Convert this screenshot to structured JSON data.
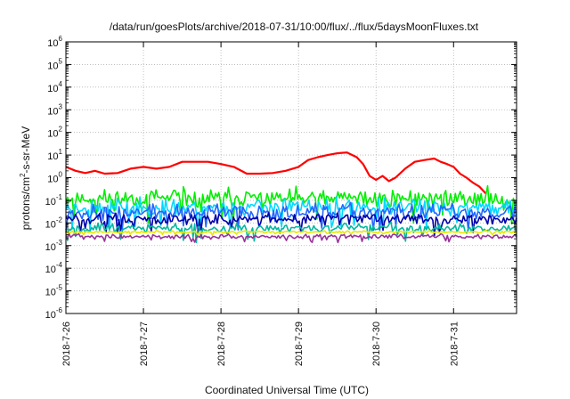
{
  "chart_data": {
    "type": "line",
    "title": "/data/run/goesPlots/archive/2018-07-31/10:00/flux/../flux/5daysMoonFluxes.txt",
    "xlabel": "Coordinated Universal Time (UTC)",
    "ylabel": {
      "base": "protons/cm",
      "sup": "2",
      "rest": "-s-sr-MeV"
    },
    "y_scale": "log",
    "ylim": [
      1e-06,
      1000000.0
    ],
    "y_ticks": [
      {
        "exp": "-6"
      },
      {
        "exp": "-5"
      },
      {
        "exp": "-4"
      },
      {
        "exp": "-3"
      },
      {
        "exp": "-2"
      },
      {
        "exp": "-1"
      },
      {
        "exp": "0"
      },
      {
        "exp": "1"
      },
      {
        "exp": "2"
      },
      {
        "exp": "3"
      },
      {
        "exp": "4"
      },
      {
        "exp": "5"
      },
      {
        "exp": "6"
      }
    ],
    "x_range": [
      "2018-07-26",
      "2018-07-31 19:30"
    ],
    "x_ticks": [
      "2018-7-26",
      "2018-7-27",
      "2018-7-28",
      "2018-7-29",
      "2018-7-30",
      "2018-7-31"
    ],
    "grid": true,
    "legend": "none",
    "series": [
      {
        "color": "#ff0000",
        "points": [
          [
            "2018-07-26 00:00",
            3.0
          ],
          [
            "2018-07-26 03:00",
            2.0
          ],
          [
            "2018-07-26 06:00",
            1.6
          ],
          [
            "2018-07-26 09:00",
            2.0
          ],
          [
            "2018-07-26 12:00",
            1.5
          ],
          [
            "2018-07-26 16:00",
            1.6
          ],
          [
            "2018-07-26 20:00",
            2.5
          ],
          [
            "2018-07-27 00:00",
            3.0
          ],
          [
            "2018-07-27 04:00",
            2.5
          ],
          [
            "2018-07-27 08:00",
            3.0
          ],
          [
            "2018-07-27 12:00",
            5.0
          ],
          [
            "2018-07-27 16:00",
            5.0
          ],
          [
            "2018-07-27 20:00",
            5.0
          ],
          [
            "2018-07-28 00:00",
            4.0
          ],
          [
            "2018-07-28 04:00",
            3.0
          ],
          [
            "2018-07-28 08:00",
            1.5
          ],
          [
            "2018-07-28 12:00",
            1.5
          ],
          [
            "2018-07-28 16:00",
            1.6
          ],
          [
            "2018-07-28 20:00",
            2.0
          ],
          [
            "2018-07-29 00:00",
            3.0
          ],
          [
            "2018-07-29 03:00",
            6.0
          ],
          [
            "2018-07-29 06:00",
            8.0
          ],
          [
            "2018-07-29 09:00",
            10.0
          ],
          [
            "2018-07-29 12:00",
            12.0
          ],
          [
            "2018-07-29 15:00",
            13.0
          ],
          [
            "2018-07-29 18:00",
            8.0
          ],
          [
            "2018-07-29 20:00",
            4.0
          ],
          [
            "2018-07-29 22:00",
            1.2
          ],
          [
            "2018-07-30 00:00",
            0.8
          ],
          [
            "2018-07-30 02:00",
            1.2
          ],
          [
            "2018-07-30 04:00",
            0.7
          ],
          [
            "2018-07-30 06:00",
            1.0
          ],
          [
            "2018-07-30 09:00",
            2.5
          ],
          [
            "2018-07-30 12:00",
            5.0
          ],
          [
            "2018-07-30 15:00",
            6.0
          ],
          [
            "2018-07-30 18:00",
            7.0
          ],
          [
            "2018-07-30 20:00",
            5.0
          ],
          [
            "2018-07-30 22:00",
            4.0
          ],
          [
            "2018-07-31 00:00",
            3.0
          ],
          [
            "2018-07-31 02:00",
            1.5
          ],
          [
            "2018-07-31 04:00",
            1.0
          ],
          [
            "2018-07-31 06:00",
            0.6
          ],
          [
            "2018-07-31 08:00",
            0.4
          ],
          [
            "2018-07-31 10:00",
            0.2
          ]
        ]
      },
      {
        "color": "#00ee00",
        "level": 0.12,
        "spread": 0.6,
        "seed": 11
      },
      {
        "color": "#00d8ff",
        "level": 0.05,
        "spread": 0.55,
        "seed": 23
      },
      {
        "color": "#2266ff",
        "level": 0.03,
        "spread": 0.5,
        "seed": 37
      },
      {
        "color": "#0000aa",
        "level": 0.015,
        "spread": 0.35,
        "seed": 51
      },
      {
        "color": "#00b8a0",
        "level": 0.006,
        "spread": 0.3,
        "seed": 67
      },
      {
        "color": "#e8e800",
        "level": 0.004,
        "spread": 0.08,
        "seed": 79
      },
      {
        "color": "#993399",
        "level": 0.0025,
        "spread": 0.15,
        "seed": 93
      }
    ]
  }
}
